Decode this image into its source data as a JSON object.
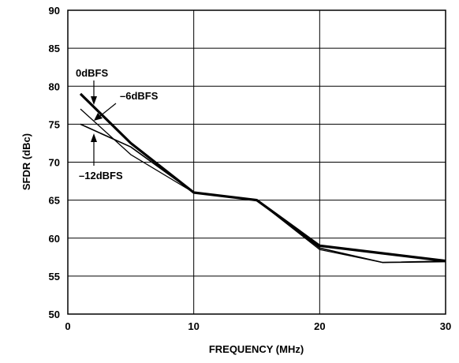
{
  "chart_data": {
    "type": "line",
    "xlabel": "FREQUENCY (MHz)",
    "ylabel": "SFDR (dBc)",
    "xlim": [
      0,
      30
    ],
    "ylim": [
      50,
      90
    ],
    "xticks": [
      "0",
      "10",
      "20",
      "30"
    ],
    "yticks": [
      "50",
      "55",
      "60",
      "65",
      "70",
      "75",
      "80",
      "85",
      "90"
    ],
    "grid": true,
    "series": [
      {
        "name": "0dBFS",
        "x": [
          1,
          5,
          10,
          15,
          20,
          25,
          30
        ],
        "y": [
          79,
          72.5,
          66,
          65,
          59,
          58,
          57
        ]
      },
      {
        "name": "–6dBFS",
        "x": [
          1,
          5,
          10,
          15,
          20,
          25,
          30
        ],
        "y": [
          77,
          71,
          66,
          65,
          58.5,
          56.8,
          57
        ]
      },
      {
        "name": "–12dBFS",
        "x": [
          1,
          5,
          10,
          15,
          20,
          25,
          30
        ],
        "y": [
          75,
          72,
          66,
          65,
          58.7,
          56.8,
          56.9
        ]
      }
    ]
  }
}
